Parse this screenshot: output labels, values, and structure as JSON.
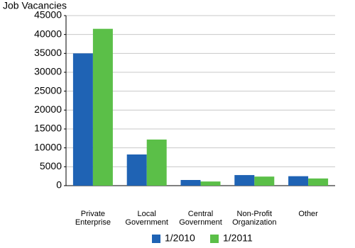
{
  "chart_data": {
    "type": "bar",
    "y_label": "Job Vacancies",
    "categories": [
      "Private\nEnterprise",
      "Local\nGovernment",
      "Central\nGovernment",
      "Non-Profit\nOrganization",
      "Other"
    ],
    "series": [
      {
        "name": "1/2010",
        "color": "#1f63b4",
        "values": [
          35000,
          8250,
          1500,
          2800,
          2500
        ]
      },
      {
        "name": "1/2011",
        "color": "#5bbf48",
        "values": [
          41500,
          12200,
          1100,
          2400,
          1900
        ]
      }
    ],
    "ylim": [
      0,
      45000
    ],
    "yticks": [
      0,
      5000,
      10000,
      15000,
      20000,
      25000,
      30000,
      35000,
      40000,
      45000
    ],
    "grid": true,
    "legend": "bottom"
  }
}
